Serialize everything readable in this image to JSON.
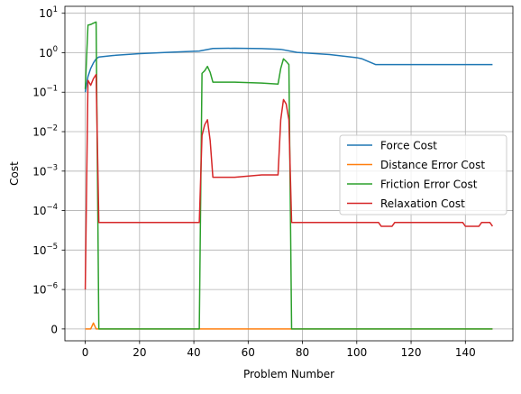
{
  "chart_data": {
    "type": "line",
    "xlabel": "Problem Number",
    "ylabel": "Cost",
    "yscale": "symlog",
    "linthresh": 1e-06,
    "xlim": [
      -7.5,
      157.5
    ],
    "ylim": [
      -3e-07,
      15
    ],
    "grid": true,
    "legend_position": "center-right",
    "x_ticks": [
      0,
      20,
      40,
      60,
      80,
      100,
      120,
      140
    ],
    "x_tick_labels": [
      "0",
      "20",
      "40",
      "60",
      "80",
      "100",
      "120",
      "140"
    ],
    "y_ticks": [
      {
        "value": 0,
        "base": "0",
        "exp": ""
      },
      {
        "value": 1e-06,
        "base": "10",
        "exp": "−6"
      },
      {
        "value": 1e-05,
        "base": "10",
        "exp": "−5"
      },
      {
        "value": 0.0001,
        "base": "10",
        "exp": "−4"
      },
      {
        "value": 0.001,
        "base": "10",
        "exp": "−3"
      },
      {
        "value": 0.01,
        "base": "10",
        "exp": "−2"
      },
      {
        "value": 0.1,
        "base": "10",
        "exp": "−1"
      },
      {
        "value": 1,
        "base": "10",
        "exp": "0"
      },
      {
        "value": 10,
        "base": "10",
        "exp": "1"
      }
    ],
    "series": [
      {
        "name": "Force Cost",
        "color": "#1f77b4",
        "points": [
          [
            0,
            0.1
          ],
          [
            1,
            0.25
          ],
          [
            2,
            0.4
          ],
          [
            3,
            0.55
          ],
          [
            4,
            0.7
          ],
          [
            5,
            0.78
          ],
          [
            10,
            0.85
          ],
          [
            20,
            0.95
          ],
          [
            30,
            1.02
          ],
          [
            42,
            1.1
          ],
          [
            47,
            1.28
          ],
          [
            55,
            1.3
          ],
          [
            65,
            1.27
          ],
          [
            72,
            1.22
          ],
          [
            78,
            1.02
          ],
          [
            90,
            0.9
          ],
          [
            100,
            0.75
          ],
          [
            102,
            0.7
          ],
          [
            107,
            0.5
          ],
          [
            150,
            0.5
          ]
        ]
      },
      {
        "name": "Distance Error Cost",
        "color": "#ff7f0e",
        "points": [
          [
            0,
            0
          ],
          [
            1,
            0
          ],
          [
            2,
            0
          ],
          [
            3,
            1.5e-07
          ],
          [
            4,
            0
          ],
          [
            5,
            0
          ],
          [
            150,
            0
          ]
        ]
      },
      {
        "name": "Friction Error Cost",
        "color": "#2ca02c",
        "points": [
          [
            0,
            0.12
          ],
          [
            1,
            5
          ],
          [
            2,
            5.2
          ],
          [
            3,
            5.6
          ],
          [
            4,
            6
          ],
          [
            5,
            0
          ],
          [
            42,
            0
          ],
          [
            43,
            0.3
          ],
          [
            44,
            0.35
          ],
          [
            45,
            0.45
          ],
          [
            46,
            0.32
          ],
          [
            47,
            0.18
          ],
          [
            55,
            0.18
          ],
          [
            65,
            0.17
          ],
          [
            71,
            0.16
          ],
          [
            72,
            0.4
          ],
          [
            73,
            0.7
          ],
          [
            74,
            0.6
          ],
          [
            75,
            0.5
          ],
          [
            76,
            0
          ],
          [
            150,
            0
          ]
        ]
      },
      {
        "name": "Relaxation Cost",
        "color": "#d62728",
        "points": [
          [
            0,
            1e-06
          ],
          [
            1,
            0.2
          ],
          [
            2,
            0.15
          ],
          [
            3,
            0.22
          ],
          [
            4,
            0.28
          ],
          [
            5,
            5e-05
          ],
          [
            42,
            5e-05
          ],
          [
            43,
            0.008
          ],
          [
            44,
            0.015
          ],
          [
            45,
            0.02
          ],
          [
            46,
            0.006
          ],
          [
            47,
            0.0007
          ],
          [
            55,
            0.0007
          ],
          [
            65,
            0.0008
          ],
          [
            71,
            0.0008
          ],
          [
            72,
            0.02
          ],
          [
            73,
            0.065
          ],
          [
            74,
            0.05
          ],
          [
            75,
            0.02
          ],
          [
            76,
            5e-05
          ],
          [
            100,
            5e-05
          ],
          [
            108,
            5e-05
          ],
          [
            109,
            4e-05
          ],
          [
            113,
            4e-05
          ],
          [
            114,
            5e-05
          ],
          [
            139,
            5e-05
          ],
          [
            140,
            4e-05
          ],
          [
            145,
            4e-05
          ],
          [
            146,
            5e-05
          ],
          [
            149,
            5e-05
          ],
          [
            150,
            4e-05
          ]
        ]
      }
    ]
  }
}
